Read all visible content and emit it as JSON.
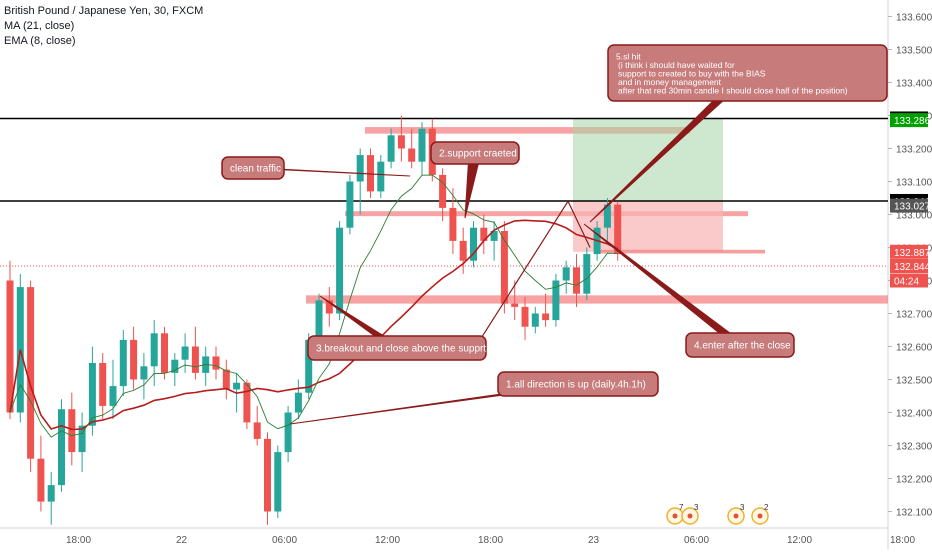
{
  "legend": {
    "symbol": "British Pound / Japanese Yen, 30, FXCM",
    "ma": "MA (21, close)",
    "ema": "EMA (8, close)"
  },
  "colors": {
    "up": "#26a69a",
    "down": "#ef5350",
    "ma_line": "#b71c1c",
    "ema_line": "#2e7d32",
    "callout_fill": "#c77b7b",
    "callout_border": "#8b1a1a",
    "zone_red": "#f48484",
    "profit_zone": "#a5d6a7",
    "loss_zone": "#f8b4b4"
  },
  "axis_badges": [
    {
      "label": "133.291",
      "value": 133.291,
      "bg": "#000000",
      "fg": "#ffffff"
    },
    {
      "label": "133.286",
      "value": 133.286,
      "bg": "#00a000",
      "fg": "#ffffff"
    },
    {
      "label": "133.041",
      "value": 133.041,
      "bg": "#000000",
      "fg": "#ffffff"
    },
    {
      "label": "133.027",
      "value": 133.027,
      "bg": "#555555",
      "fg": "#ffffff"
    },
    {
      "label": "132.887",
      "value": 132.887,
      "bg": "#ef5350",
      "fg": "#ffffff"
    },
    {
      "label": "132.844",
      "value": 132.844,
      "bg": "#ef5350",
      "fg": "#ffffff"
    },
    {
      "label": "04:24",
      "value": 132.8,
      "bg": "#ef5350",
      "fg": "#ffffff"
    }
  ],
  "chart_data": {
    "type": "candlestick",
    "title": "British Pound / Japanese Yen, 30, FXCM",
    "ylim": [
      132.05,
      133.65
    ],
    "y_ticks": [
      "133.600",
      "133.500",
      "133.400",
      "133.300",
      "133.200",
      "133.100",
      "133.000",
      "132.900",
      "132.800",
      "132.700",
      "132.600",
      "132.500",
      "132.400",
      "132.300",
      "132.200",
      "132.100"
    ],
    "x_ticks": [
      "18:00",
      "22",
      "06:00",
      "12:00",
      "18:00",
      "23",
      "06:00",
      "12:00",
      "18:00"
    ],
    "x_tick_index": [
      5,
      15,
      25,
      35,
      45,
      55,
      65,
      75,
      85
    ],
    "candles": [
      [
        132.8,
        132.86,
        132.38,
        132.4
      ],
      [
        132.4,
        132.82,
        132.37,
        132.78
      ],
      [
        132.78,
        132.8,
        132.22,
        132.26
      ],
      [
        132.26,
        132.33,
        132.1,
        132.13
      ],
      [
        132.13,
        132.22,
        132.06,
        132.18
      ],
      [
        132.18,
        132.44,
        132.16,
        132.41
      ],
      [
        132.41,
        132.46,
        132.24,
        132.28
      ],
      [
        132.28,
        132.4,
        132.22,
        132.36
      ],
      [
        132.36,
        132.6,
        132.33,
        132.55
      ],
      [
        132.55,
        132.58,
        132.38,
        132.42
      ],
      [
        132.42,
        132.56,
        132.38,
        132.48
      ],
      [
        132.48,
        132.65,
        132.45,
        132.62
      ],
      [
        132.62,
        132.66,
        132.47,
        132.5
      ],
      [
        132.5,
        132.58,
        132.44,
        132.54
      ],
      [
        132.54,
        132.68,
        132.48,
        132.64
      ],
      [
        132.64,
        132.66,
        132.5,
        132.52
      ],
      [
        132.52,
        132.58,
        132.48,
        132.56
      ],
      [
        132.56,
        132.64,
        132.52,
        132.6
      ],
      [
        132.6,
        132.66,
        132.5,
        132.52
      ],
      [
        132.52,
        132.6,
        132.48,
        132.57
      ],
      [
        132.57,
        132.6,
        132.5,
        132.53
      ],
      [
        132.53,
        132.56,
        132.44,
        132.47
      ],
      [
        132.47,
        132.52,
        132.4,
        132.49
      ],
      [
        132.49,
        132.5,
        132.35,
        132.37
      ],
      [
        132.37,
        132.42,
        132.3,
        132.32
      ],
      [
        132.32,
        132.34,
        132.06,
        132.1
      ],
      [
        132.1,
        132.3,
        132.08,
        132.28
      ],
      [
        132.28,
        132.42,
        132.25,
        132.4
      ],
      [
        132.4,
        132.5,
        132.38,
        132.46
      ],
      [
        132.46,
        132.64,
        132.44,
        132.62
      ],
      [
        132.62,
        132.76,
        132.6,
        132.74
      ],
      [
        132.74,
        132.78,
        132.66,
        132.7
      ],
      [
        132.7,
        132.98,
        132.68,
        132.96
      ],
      [
        132.96,
        133.12,
        132.94,
        133.1
      ],
      [
        133.1,
        133.2,
        133.0,
        133.18
      ],
      [
        133.18,
        133.2,
        133.05,
        133.07
      ],
      [
        133.07,
        133.18,
        133.05,
        133.16
      ],
      [
        133.16,
        133.26,
        133.14,
        133.24
      ],
      [
        133.24,
        133.3,
        133.16,
        133.2
      ],
      [
        133.2,
        133.26,
        133.14,
        133.16
      ],
      [
        133.16,
        133.28,
        133.12,
        133.26
      ],
      [
        133.26,
        133.29,
        133.1,
        133.12
      ],
      [
        133.12,
        133.14,
        132.98,
        133.02
      ],
      [
        133.02,
        133.08,
        132.88,
        132.92
      ],
      [
        132.92,
        132.96,
        132.82,
        132.86
      ],
      [
        132.86,
        132.98,
        132.84,
        132.96
      ],
      [
        132.96,
        133.0,
        132.88,
        132.92
      ],
      [
        132.92,
        132.98,
        132.86,
        132.95
      ],
      [
        132.95,
        132.98,
        132.7,
        132.73
      ],
      [
        132.73,
        132.8,
        132.68,
        132.72
      ],
      [
        132.72,
        132.75,
        132.62,
        132.66
      ],
      [
        132.66,
        132.72,
        132.64,
        132.7
      ],
      [
        132.7,
        132.76,
        132.66,
        132.68
      ],
      [
        132.68,
        132.82,
        132.66,
        132.8
      ],
      [
        132.8,
        132.86,
        132.76,
        132.84
      ],
      [
        132.84,
        132.88,
        132.72,
        132.76
      ],
      [
        132.76,
        132.9,
        132.74,
        132.88
      ],
      [
        132.88,
        132.98,
        132.86,
        132.96
      ],
      [
        132.96,
        133.05,
        132.92,
        133.03
      ],
      [
        133.03,
        133.04,
        132.86,
        132.88
      ]
    ],
    "annotations": [
      {
        "text": "clean traffic"
      },
      {
        "text": "2.support craeted"
      },
      {
        "text": "3.breakout and close above  the supprt"
      },
      {
        "text": "1.all direction is up (daily.4h.1h)"
      },
      {
        "text": "4.enter after the close"
      },
      {
        "text": "5.sl hit\n(i think i should have waited for\nsupport to created to buy with the BIAS\nand in money management\nafter that red 30min candle I should close half of the position)"
      }
    ],
    "event_badges": [
      "7",
      "3",
      "3",
      "2"
    ]
  }
}
